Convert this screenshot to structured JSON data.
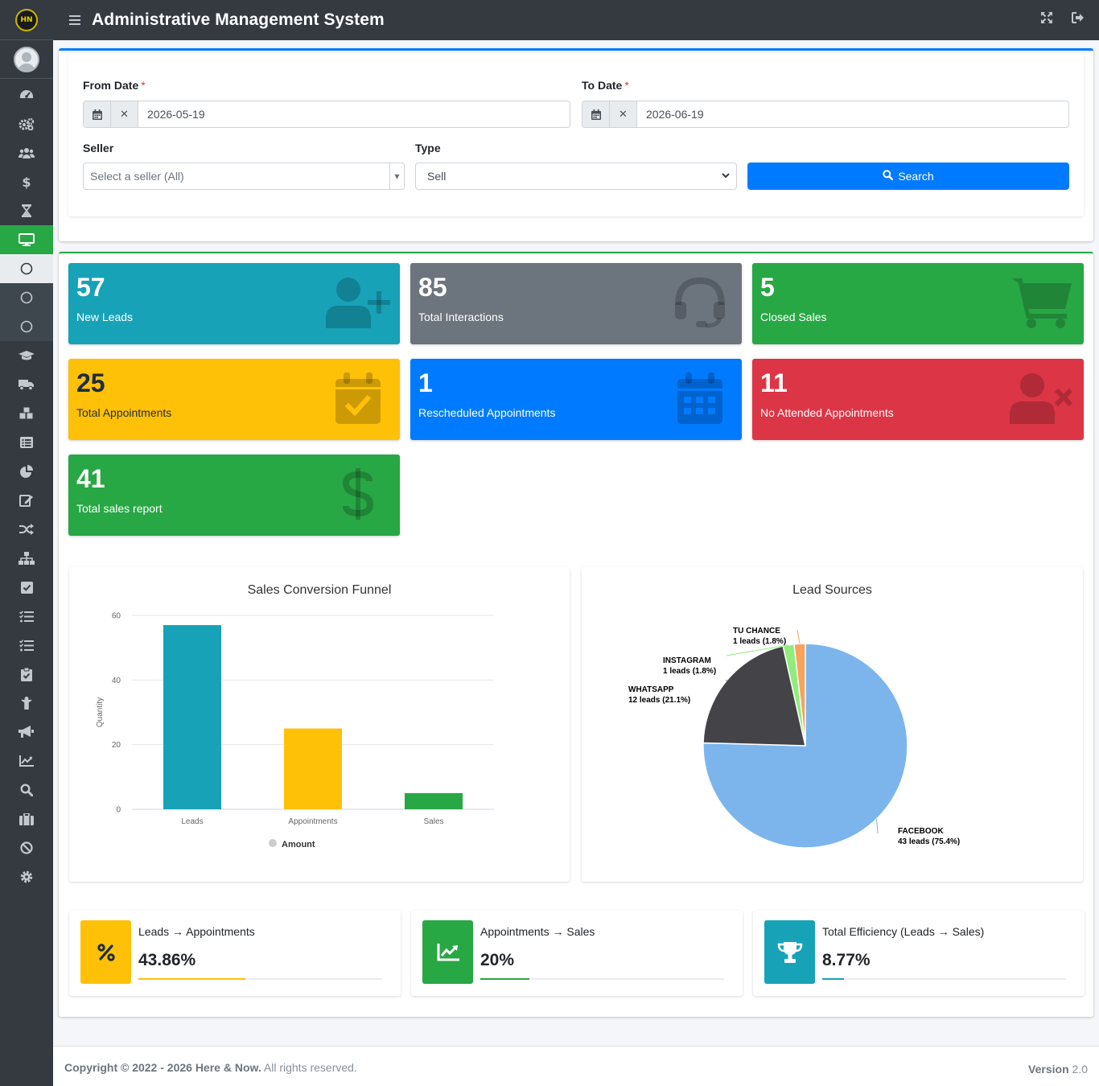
{
  "header": {
    "title": "Administrative Management System"
  },
  "filters": {
    "from_label": "From Date",
    "from_value": "2026-05-19",
    "to_label": "To Date",
    "to_value": "2026-06-19",
    "required_mark": "*",
    "seller_label": "Seller",
    "seller_placeholder": "Select a seller (All)",
    "type_label": "Type",
    "type_value": "Sell",
    "search_label": "Search"
  },
  "boxes": [
    {
      "value": "57",
      "label": "New Leads",
      "color": "#17a2b8",
      "icon": "user-plus-icon"
    },
    {
      "value": "85",
      "label": "Total Interactions",
      "color": "#6c757d",
      "icon": "headset-icon"
    },
    {
      "value": "5",
      "label": "Closed Sales",
      "color": "#28a745",
      "icon": "cart-icon"
    },
    {
      "value": "25",
      "label": "Total Appointments",
      "color": "#ffc107",
      "icon": "calendar-check-icon"
    },
    {
      "value": "1",
      "label": "Rescheduled Appointments",
      "color": "#007bff",
      "icon": "calendar-icon"
    },
    {
      "value": "11",
      "label": "No Attended Appointments",
      "color": "#dc3545",
      "icon": "user-times-icon"
    },
    {
      "value": "41",
      "label": "Total sales report",
      "color": "#28a745",
      "icon": "dollar-icon"
    }
  ],
  "chart_data": [
    {
      "type": "bar",
      "title": "Sales Conversion Funnel",
      "categories": [
        "Leads",
        "Appointments",
        "Sales"
      ],
      "series": [
        {
          "name": "Amount",
          "values": [
            57,
            25,
            5
          ]
        }
      ],
      "colors": [
        "#17a2b8",
        "#ffc107",
        "#28a745"
      ],
      "ylabel": "Quantity",
      "yticks": [
        0,
        20,
        40,
        60
      ],
      "ylim": [
        0,
        60
      ],
      "legend": "bottom"
    },
    {
      "type": "pie",
      "title": "Lead Sources",
      "slices": [
        {
          "name": "FACEBOOK",
          "value": 43,
          "label": "43 leads (75.4%)",
          "color": "#7cb5ec"
        },
        {
          "name": "WHATSAPP",
          "value": 12,
          "label": "12 leads (21.1%)",
          "color": "#434348"
        },
        {
          "name": "INSTAGRAM",
          "value": 1,
          "label": "1 leads (1.8%)",
          "color": "#90ed7d"
        },
        {
          "name": "TU CHANCE",
          "value": 1,
          "label": "1 leads (1.8%)",
          "color": "#f7a35c"
        }
      ]
    }
  ],
  "stats": [
    {
      "label": "Leads → Appointments",
      "value": "43.86%",
      "progress": 43.86,
      "color": "#ffc107",
      "icon": "percent-icon"
    },
    {
      "label": "Appointments → Sales",
      "value": "20%",
      "progress": 20,
      "color": "#28a745",
      "icon": "chart-line-icon"
    },
    {
      "label": "Total Efficiency (Leads → Sales)",
      "value": "8.77%",
      "progress": 8.77,
      "color": "#17a2b8",
      "icon": "trophy-icon"
    }
  ],
  "footer": {
    "copyright": "Copyright © 2022 - 2026 Here & Now.",
    "rights": "All rights reserved.",
    "version_label": "Version",
    "version": "2.0"
  },
  "sidebar": {
    "items": [
      "dashboard-icon",
      "cogs-icon",
      "users-icon",
      "dollar-icon",
      "hourglass-icon",
      "desktop-icon",
      "circle-icon",
      "circle-icon",
      "circle-icon",
      "graduation-cap-icon",
      "truck-icon",
      "cubes-icon",
      "list-icon",
      "pie-chart-icon",
      "edit-icon",
      "random-icon",
      "sitemap-icon",
      "check-square-icon",
      "tasks-icon",
      "tasks-icon",
      "clipboard-check-icon",
      "child-icon",
      "bullhorn-icon",
      "chart-line-icon",
      "search-icon",
      "briefcase-icon",
      "ban-icon",
      "cog-icon"
    ]
  }
}
